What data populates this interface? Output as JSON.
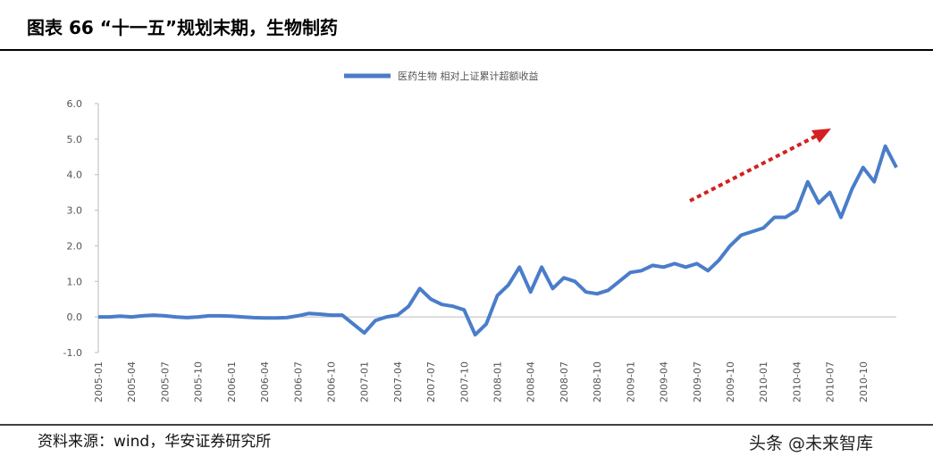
{
  "chart_data": {
    "type": "line",
    "title": "图表 66 “十一五”规划末期，生物制药",
    "source": "资料来源：wind，华安证券研究所",
    "watermark": "头条 @未来智库",
    "categories": [
      "2005-01",
      null,
      null,
      "2005-04",
      null,
      null,
      "2005-07",
      null,
      null,
      "2005-10",
      null,
      null,
      "2006-01",
      null,
      null,
      "2006-04",
      null,
      null,
      "2006-07",
      null,
      null,
      "2006-10",
      null,
      null,
      "2007-01",
      null,
      null,
      "2007-04",
      null,
      null,
      "2007-07",
      null,
      null,
      "2007-10",
      null,
      null,
      "2008-01",
      null,
      null,
      "2008-04",
      null,
      null,
      "2008-07",
      null,
      null,
      "2008-10",
      null,
      null,
      "2009-01",
      null,
      null,
      "2009-04",
      null,
      null,
      "2009-07",
      null,
      null,
      "2009-10",
      null,
      null,
      "2010-01",
      null,
      null,
      "2010-04",
      null,
      null,
      "2010-07",
      null,
      null,
      "2010-10",
      null,
      null,
      null
    ],
    "series": [
      {
        "name": "医药生物 相对上证累计超额收益",
        "color": "#4a7dc9",
        "values": [
          0,
          0,
          0.02,
          0,
          0.03,
          0.05,
          0.03,
          0,
          -0.02,
          0,
          0.03,
          0.03,
          0.02,
          0,
          -0.02,
          -0.03,
          -0.03,
          -0.02,
          0.03,
          0.1,
          0.08,
          0.05,
          0.05,
          -0.2,
          -0.45,
          -0.1,
          0,
          0.05,
          0.3,
          0.8,
          0.5,
          0.35,
          0.3,
          0.2,
          -0.5,
          -0.2,
          0.6,
          0.9,
          1.4,
          0.7,
          1.4,
          0.8,
          1.1,
          1.0,
          0.7,
          0.65,
          0.75,
          1.0,
          1.25,
          1.3,
          1.45,
          1.4,
          1.5,
          1.4,
          1.5,
          1.3,
          1.6,
          2.0,
          2.3,
          2.4,
          2.5,
          2.8,
          2.8,
          3.0,
          3.8,
          3.2,
          3.5,
          2.8,
          3.6,
          4.2,
          3.8,
          4.8,
          4.2
        ]
      }
    ],
    "ylim": [
      -1,
      6
    ],
    "yticks": [
      {
        "value": -1,
        "label": "-1.0"
      },
      {
        "value": 0,
        "label": "0.0"
      },
      {
        "value": 1,
        "label": "1.0"
      },
      {
        "value": 2,
        "label": "2.0"
      },
      {
        "value": 3,
        "label": "3.0"
      },
      {
        "value": 4,
        "label": "4.0"
      },
      {
        "value": 5,
        "label": "5.0"
      },
      {
        "value": 6,
        "label": "6.0"
      }
    ]
  }
}
